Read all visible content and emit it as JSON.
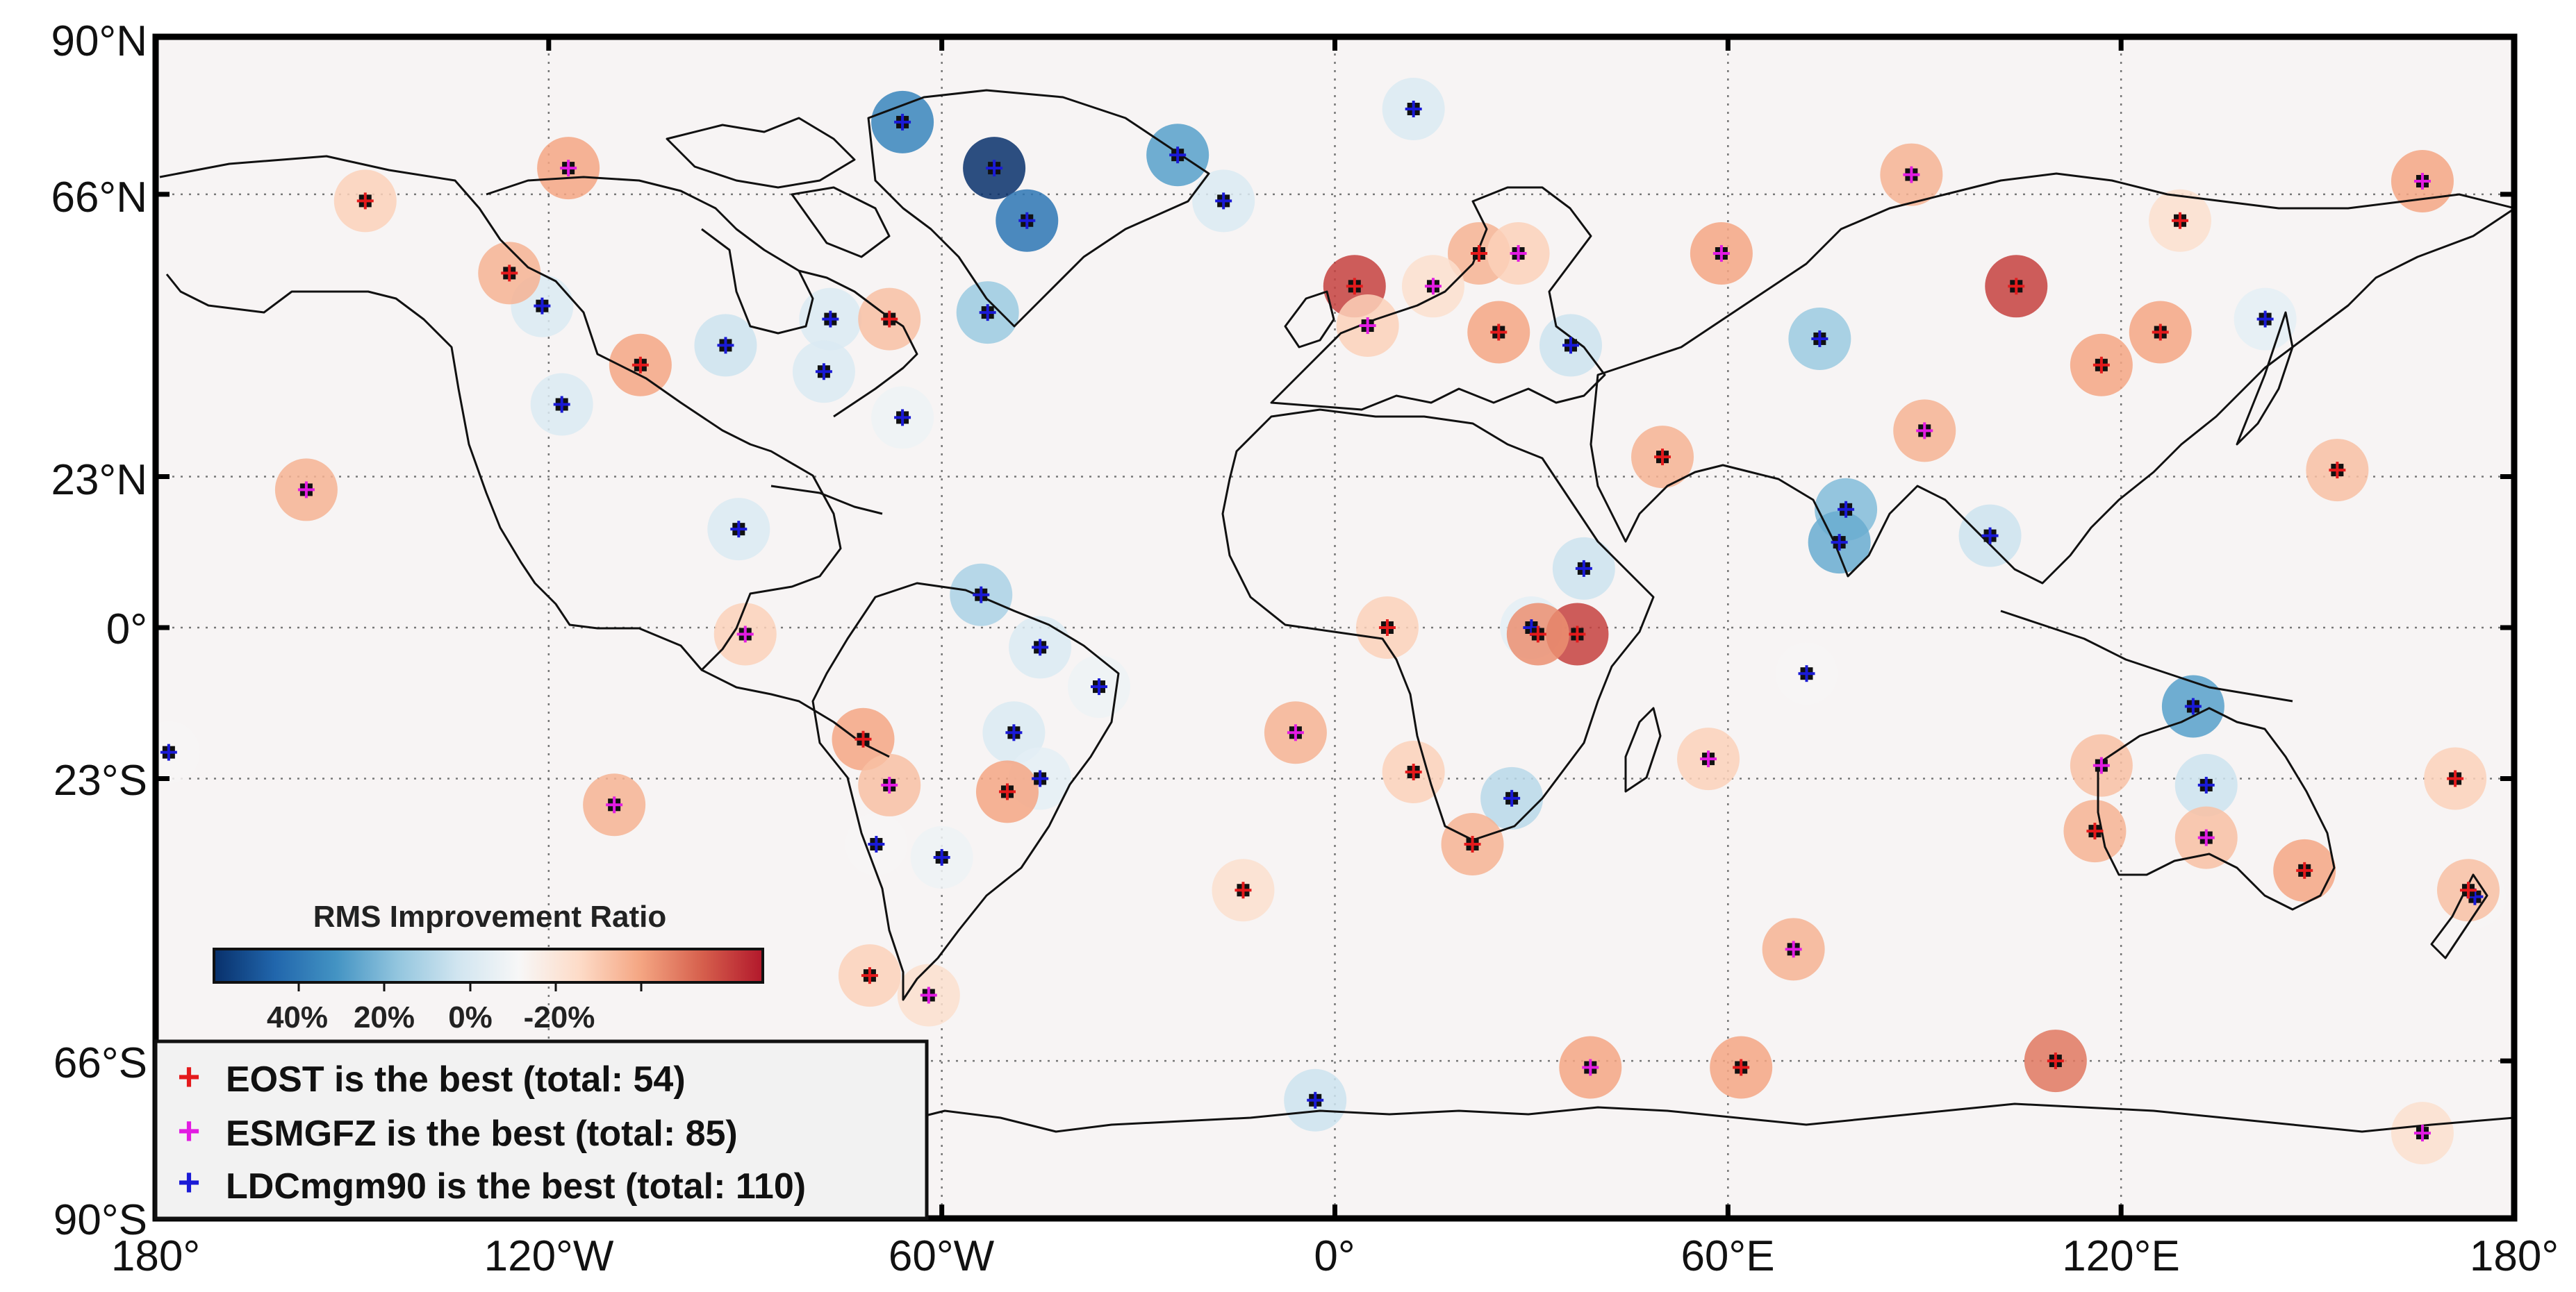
{
  "axes": {
    "lat_labels": [
      "90°N",
      "66°N",
      "23°N",
      "0°",
      "23°S",
      "66°S",
      "90°S"
    ],
    "lon_labels": [
      "180°",
      "120°W",
      "60°W",
      "0°",
      "60°E",
      "120°E",
      "180°"
    ]
  },
  "colorbar": {
    "title": "RMS Improvement Ratio",
    "ticks": [
      "40%",
      "20%",
      "0%",
      "-20%"
    ],
    "range": [
      0.5,
      -0.3
    ],
    "colors": [
      "#08306b",
      "#2166ac",
      "#4393c3",
      "#92c5de",
      "#d1e5f0",
      "#f7f7f7",
      "#fddbc7",
      "#f4a582",
      "#d6604d",
      "#b2182b"
    ]
  },
  "legend": [
    {
      "model": "EOST",
      "marker_color": "#e41a1c",
      "label": "EOST is the best (total: 54)"
    },
    {
      "model": "ESMGFZ",
      "marker_color": "#e21ce2",
      "label": "ESMGFZ is the best (total: 85)"
    },
    {
      "model": "LDCmgm90",
      "marker_color": "#1a1ad6",
      "label": "LDCmgm90 is the best (total: 110)"
    }
  ],
  "stations": [
    {
      "lon": -66,
      "lat": 77,
      "best": "LDCmgm90",
      "ratio": 0.35
    },
    {
      "lon": -52,
      "lat": 70,
      "best": "LDCmgm90",
      "ratio": 0.5
    },
    {
      "lon": -47,
      "lat": 62,
      "best": "LDCmgm90",
      "ratio": 0.38
    },
    {
      "lon": -24,
      "lat": 72,
      "best": "LDCmgm90",
      "ratio": 0.3
    },
    {
      "lon": -17,
      "lat": 65,
      "best": "LDCmgm90",
      "ratio": 0.12
    },
    {
      "lon": 12,
      "lat": 79,
      "best": "LDCmgm90",
      "ratio": 0.12
    },
    {
      "lon": -53,
      "lat": 48,
      "best": "LDCmgm90",
      "ratio": 0.22
    },
    {
      "lon": -93,
      "lat": 43,
      "best": "LDCmgm90",
      "ratio": 0.15
    },
    {
      "lon": -77,
      "lat": 47,
      "best": "LDCmgm90",
      "ratio": 0.12
    },
    {
      "lon": -78,
      "lat": 39,
      "best": "LDCmgm90",
      "ratio": 0.12
    },
    {
      "lon": -121,
      "lat": 49,
      "best": "LDCmgm90",
      "ratio": 0.12
    },
    {
      "lon": -118,
      "lat": 34,
      "best": "LDCmgm90",
      "ratio": 0.12
    },
    {
      "lon": -66,
      "lat": 32,
      "best": "LDCmgm90",
      "ratio": 0.08
    },
    {
      "lon": -91,
      "lat": 15,
      "best": "LDCmgm90",
      "ratio": 0.12
    },
    {
      "lon": -54,
      "lat": 5,
      "best": "LDCmgm90",
      "ratio": 0.2
    },
    {
      "lon": -45,
      "lat": -3,
      "best": "LDCmgm90",
      "ratio": 0.12
    },
    {
      "lon": -36,
      "lat": -9,
      "best": "LDCmgm90",
      "ratio": 0.08
    },
    {
      "lon": -49,
      "lat": -16,
      "best": "LDCmgm90",
      "ratio": 0.12
    },
    {
      "lon": -45,
      "lat": -23,
      "best": "LDCmgm90",
      "ratio": 0.1
    },
    {
      "lon": -60,
      "lat": -35,
      "best": "LDCmgm90",
      "ratio": 0.08
    },
    {
      "lon": -70,
      "lat": -33,
      "best": "LDCmgm90",
      "ratio": 0.05
    },
    {
      "lon": -178,
      "lat": -19,
      "best": "LDCmgm90",
      "ratio": 0.05
    },
    {
      "lon": 36,
      "lat": 43,
      "best": "LDCmgm90",
      "ratio": 0.15
    },
    {
      "lon": 38,
      "lat": 9,
      "best": "LDCmgm90",
      "ratio": 0.15
    },
    {
      "lon": 30,
      "lat": 0,
      "best": "LDCmgm90",
      "ratio": 0.1
    },
    {
      "lon": 27,
      "lat": -26,
      "best": "LDCmgm90",
      "ratio": 0.18
    },
    {
      "lon": 74,
      "lat": 44,
      "best": "LDCmgm90",
      "ratio": 0.22
    },
    {
      "lon": 78,
      "lat": 18,
      "best": "LDCmgm90",
      "ratio": 0.25
    },
    {
      "lon": 77,
      "lat": 13,
      "best": "LDCmgm90",
      "ratio": 0.28
    },
    {
      "lon": 100,
      "lat": 14,
      "best": "LDCmgm90",
      "ratio": 0.15
    },
    {
      "lon": 131,
      "lat": -12,
      "best": "LDCmgm90",
      "ratio": 0.3
    },
    {
      "lon": 133,
      "lat": -24,
      "best": "LDCmgm90",
      "ratio": 0.15
    },
    {
      "lon": 142,
      "lat": 47,
      "best": "LDCmgm90",
      "ratio": 0.1
    },
    {
      "lon": -3,
      "lat": -72,
      "best": "LDCmgm90",
      "ratio": 0.15
    },
    {
      "lon": 72,
      "lat": -7,
      "best": "LDCmgm90",
      "ratio": 0.05
    },
    {
      "lon": 174,
      "lat": -41,
      "best": "LDCmgm90",
      "ratio": 0.05
    },
    {
      "lon": 3,
      "lat": 52,
      "best": "EOST",
      "ratio": -0.25
    },
    {
      "lon": 104,
      "lat": 52,
      "best": "EOST",
      "ratio": -0.25
    },
    {
      "lon": 37,
      "lat": -1,
      "best": "EOST",
      "ratio": -0.25
    },
    {
      "lon": 31,
      "lat": -1,
      "best": "EOST",
      "ratio": -0.15
    },
    {
      "lon": 110,
      "lat": -66,
      "best": "EOST",
      "ratio": -0.18
    },
    {
      "lon": -106,
      "lat": 40,
      "best": "EOST",
      "ratio": -0.12
    },
    {
      "lon": -72,
      "lat": -17,
      "best": "EOST",
      "ratio": -0.12
    },
    {
      "lon": -50,
      "lat": -25,
      "best": "EOST",
      "ratio": -0.12
    },
    {
      "lon": 117,
      "lat": 40,
      "best": "EOST",
      "ratio": -0.12
    },
    {
      "lon": 126,
      "lat": 45,
      "best": "EOST",
      "ratio": -0.12
    },
    {
      "lon": 116,
      "lat": -31,
      "best": "EOST",
      "ratio": -0.1
    },
    {
      "lon": 148,
      "lat": -37,
      "best": "EOST",
      "ratio": -0.12
    },
    {
      "lon": 153,
      "lat": 24,
      "best": "EOST",
      "ratio": -0.08
    },
    {
      "lon": 62,
      "lat": -67,
      "best": "EOST",
      "ratio": -0.12
    },
    {
      "lon": 21,
      "lat": -33,
      "best": "EOST",
      "ratio": -0.1
    },
    {
      "lon": 50,
      "lat": 26,
      "best": "EOST",
      "ratio": -0.1
    },
    {
      "lon": 25,
      "lat": 45,
      "best": "EOST",
      "ratio": -0.12
    },
    {
      "lon": 22,
      "lat": 57,
      "best": "EOST",
      "ratio": -0.1
    },
    {
      "lon": -126,
      "lat": 54,
      "best": "EOST",
      "ratio": -0.1
    },
    {
      "lon": -148,
      "lat": 65,
      "best": "EOST",
      "ratio": -0.05
    },
    {
      "lon": -68,
      "lat": 47,
      "best": "EOST",
      "ratio": -0.08
    },
    {
      "lon": -14,
      "lat": -40,
      "best": "EOST",
      "ratio": -0.02
    },
    {
      "lon": 8,
      "lat": 0,
      "best": "EOST",
      "ratio": -0.05
    },
    {
      "lon": 12,
      "lat": -22,
      "best": "EOST",
      "ratio": -0.05
    },
    {
      "lon": -71,
      "lat": -53,
      "best": "EOST",
      "ratio": -0.05
    },
    {
      "lon": 129,
      "lat": 62,
      "best": "EOST",
      "ratio": -0.02
    },
    {
      "lon": 171,
      "lat": -23,
      "best": "EOST",
      "ratio": -0.05
    },
    {
      "lon": 173,
      "lat": -40,
      "best": "EOST",
      "ratio": -0.08
    },
    {
      "lon": -117,
      "lat": 70,
      "best": "ESMGFZ",
      "ratio": -0.12
    },
    {
      "lon": 59,
      "lat": 57,
      "best": "ESMGFZ",
      "ratio": -0.12
    },
    {
      "lon": 88,
      "lat": 69,
      "best": "ESMGFZ",
      "ratio": -0.1
    },
    {
      "lon": 166,
      "lat": 68,
      "best": "ESMGFZ",
      "ratio": -0.12
    },
    {
      "lon": -157,
      "lat": 21,
      "best": "ESMGFZ",
      "ratio": -0.1
    },
    {
      "lon": -110,
      "lat": -27,
      "best": "ESMGFZ",
      "ratio": -0.1
    },
    {
      "lon": -6,
      "lat": -16,
      "best": "ESMGFZ",
      "ratio": -0.1
    },
    {
      "lon": 39,
      "lat": -67,
      "best": "ESMGFZ",
      "ratio": -0.12
    },
    {
      "lon": 90,
      "lat": 30,
      "best": "ESMGFZ",
      "ratio": -0.1
    },
    {
      "lon": 70,
      "lat": -49,
      "best": "ESMGFZ",
      "ratio": -0.1
    },
    {
      "lon": 117,
      "lat": -21,
      "best": "ESMGFZ",
      "ratio": -0.08
    },
    {
      "lon": 133,
      "lat": -32,
      "best": "ESMGFZ",
      "ratio": -0.08
    },
    {
      "lon": 57,
      "lat": -20,
      "best": "ESMGFZ",
      "ratio": -0.05
    },
    {
      "lon": -90,
      "lat": -1,
      "best": "ESMGFZ",
      "ratio": -0.05
    },
    {
      "lon": 28,
      "lat": 57,
      "best": "ESMGFZ",
      "ratio": -0.05
    },
    {
      "lon": 5,
      "lat": 46,
      "best": "ESMGFZ",
      "ratio": -0.05
    },
    {
      "lon": -68,
      "lat": -24,
      "best": "ESMGFZ",
      "ratio": -0.08
    },
    {
      "lon": -62,
      "lat": -56,
      "best": "ESMGFZ",
      "ratio": -0.02
    },
    {
      "lon": 15,
      "lat": 52,
      "best": "ESMGFZ",
      "ratio": -0.02
    },
    {
      "lon": 166,
      "lat": -77,
      "best": "ESMGFZ",
      "ratio": -0.02
    }
  ]
}
